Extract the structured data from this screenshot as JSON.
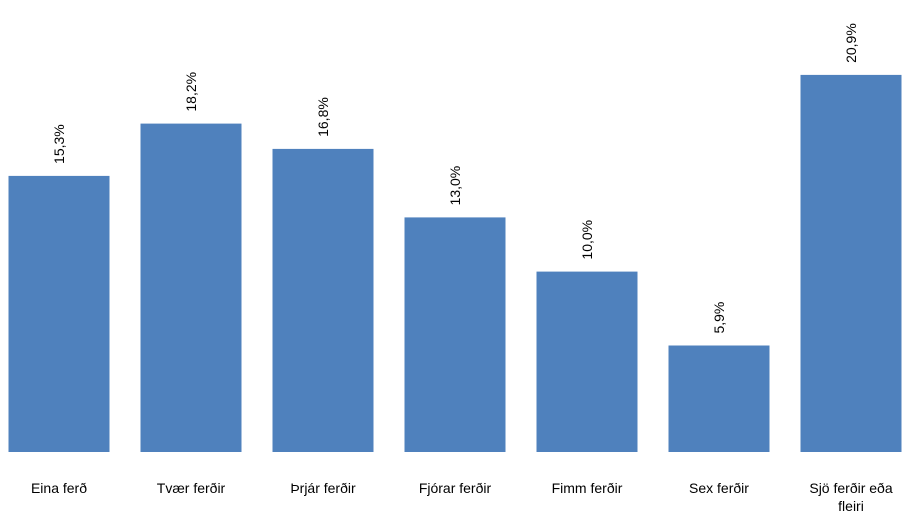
{
  "chart_data": {
    "type": "bar",
    "categories": [
      "Eina ferð",
      "Tvær ferðir",
      "Þrjár ferðir",
      "Fjórar ferðir",
      "Fimm ferðir",
      "Sex ferðir",
      "Sjö ferðir eða fleiri"
    ],
    "category_lines": [
      [
        "Eina ferð"
      ],
      [
        "Tvær ferðir"
      ],
      [
        "Þrjár ferðir"
      ],
      [
        "Fjórar ferðir"
      ],
      [
        "Fimm ferðir"
      ],
      [
        "Sex ferðir"
      ],
      [
        "Sjö ferðir eða",
        "fleiri"
      ]
    ],
    "values": [
      15.3,
      18.2,
      16.8,
      13.0,
      10.0,
      5.9,
      20.9
    ],
    "data_labels": [
      "15,3%",
      "18,2%",
      "16,8%",
      "13,0%",
      "10,0%",
      "5,9%",
      "20,9%"
    ],
    "title": "",
    "xlabel": "",
    "ylabel": "",
    "ylim": [
      0,
      23.5
    ],
    "grid": false,
    "legend": "none",
    "bar_color": "#4F81BD"
  }
}
